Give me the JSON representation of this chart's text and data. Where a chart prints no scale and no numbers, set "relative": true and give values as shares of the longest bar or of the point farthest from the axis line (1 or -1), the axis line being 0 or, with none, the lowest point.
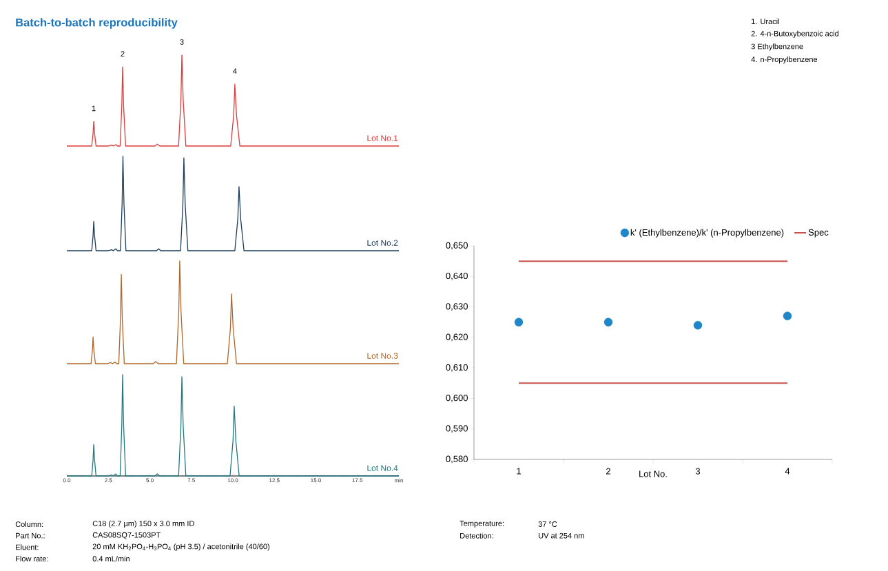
{
  "chart_data": [
    {
      "type": "line",
      "relative": true,
      "title": "Batch-to-batch reproducibility",
      "xlim": [
        0,
        20
      ],
      "tick_labels": false,
      "series": [
        {
          "name": "Lot No.1",
          "color": "#e03a3a",
          "x": [
            0,
            1.5,
            1.58,
            1.62,
            1.67,
            1.76,
            2.5,
            2.7,
            2.8,
            2.95,
            3.05,
            3.21,
            3.31,
            3.36,
            3.42,
            3.54,
            5.3,
            5.45,
            5.6,
            6.73,
            6.87,
            6.93,
            7.01,
            7.17,
            9.87,
            10.05,
            10.12,
            10.22,
            10.42,
            20
          ],
          "values": [
            0,
            0,
            0.14,
            0.27,
            0.14,
            0,
            0,
            0.01,
            0,
            0.015,
            0,
            0,
            0.44,
            0.87,
            0.44,
            0,
            0,
            0.02,
            0,
            0,
            0.5,
            1,
            0.5,
            0,
            0,
            0.34,
            0.68,
            0.34,
            0,
            0
          ]
        }
      ],
      "annotations": [
        {
          "text": "1",
          "x": 1.62,
          "y": 0.27
        },
        {
          "text": "2",
          "x": 3.36,
          "y": 0.87
        },
        {
          "text": "3",
          "x": 6.93,
          "y": 1
        },
        {
          "text": "4",
          "x": 10.12,
          "y": 0.68
        },
        "1. Uracil",
        "2. 4-n-Butoxybenzoic acid",
        "3  Ethylbenzene",
        "4. n-Propylbenzene",
        "Column:",
        "C18 (2.7 µm) 150 x 3.0 mm ID",
        "Part No.:",
        "CAS08SQ7-1503PT",
        "Eluent:",
        "20 mM KH$_{2}$PO$_{4}$-H$_{3}$PO$_{4}$ (pH 3.5) / acetonitrile (40/60)",
        "Flow rate:",
        "0.4 mL/min",
        "Temperature:",
        "37 °C",
        "Detection:",
        "UV at 254 nm"
      ]
    },
    {
      "type": "line",
      "relative": true,
      "xlim": [
        0,
        20
      ],
      "tick_labels": false,
      "series": [
        {
          "name": "Lot No.2",
          "color": "#1d3c5c",
          "x": [
            0,
            1.5,
            1.58,
            1.62,
            1.67,
            1.76,
            2.5,
            2.7,
            2.8,
            2.95,
            3.05,
            3.23,
            3.33,
            3.38,
            3.44,
            3.56,
            5.4,
            5.53,
            5.65,
            6.85,
            6.99,
            7.05,
            7.13,
            7.29,
            10.12,
            10.3,
            10.37,
            10.47,
            10.67,
            20
          ],
          "values": [
            0,
            0,
            0.16,
            0.31,
            0.16,
            0,
            0,
            0.01,
            0,
            0.02,
            0,
            0,
            0.5,
            1,
            0.5,
            0,
            0,
            0.02,
            0,
            0,
            0.49,
            0.985,
            0.49,
            0,
            0,
            0.34,
            0.68,
            0.34,
            0,
            0
          ]
        }
      ]
    },
    {
      "type": "line",
      "relative": true,
      "xlim": [
        0,
        20
      ],
      "tick_labels": false,
      "series": [
        {
          "name": "Lot No.3",
          "color": "#b0662a",
          "x": [
            0,
            1.46,
            1.54,
            1.58,
            1.63,
            1.72,
            2.45,
            2.65,
            2.75,
            2.9,
            3.0,
            3.13,
            3.23,
            3.28,
            3.34,
            3.46,
            5.2,
            5.35,
            5.5,
            6.6,
            6.74,
            6.8,
            6.88,
            7.04,
            9.67,
            9.85,
            9.92,
            10.02,
            10.22,
            20
          ],
          "values": [
            0,
            0,
            0.13,
            0.26,
            0.13,
            0,
            0,
            0.01,
            0,
            0.015,
            0,
            0,
            0.44,
            0.87,
            0.44,
            0,
            0,
            0.02,
            0,
            0,
            0.5,
            1,
            0.5,
            0,
            0,
            0.34,
            0.68,
            0.34,
            0,
            0
          ]
        }
      ]
    },
    {
      "type": "line",
      "relative": true,
      "xlim": [
        0,
        20
      ],
      "tick_labels": "x",
      "xticks": [
        {
          "value": 0,
          "label": "0.0"
        },
        {
          "value": 2.5,
          "label": "2.5"
        },
        {
          "value": 5,
          "label": "5.0"
        },
        {
          "value": 7.5,
          "label": "7.5"
        },
        {
          "value": 10,
          "label": "10.0"
        },
        {
          "value": 12.5,
          "label": "12.5"
        },
        {
          "value": 15,
          "label": "15.0"
        },
        {
          "value": 17.5,
          "label": "17.5"
        },
        {
          "value": 20,
          "label": "min"
        }
      ],
      "series": [
        {
          "name": "Lot No.4",
          "color": "#1f7a80",
          "x": [
            0,
            1.5,
            1.58,
            1.62,
            1.67,
            1.76,
            2.5,
            2.7,
            2.8,
            2.95,
            3.05,
            3.21,
            3.31,
            3.36,
            3.42,
            3.54,
            5.3,
            5.45,
            5.6,
            6.73,
            6.87,
            6.93,
            7.01,
            7.17,
            9.83,
            10.01,
            10.08,
            10.18,
            10.38,
            20
          ],
          "values": [
            0,
            0,
            0.16,
            0.31,
            0.16,
            0,
            0,
            0.01,
            0,
            0.02,
            0,
            0,
            0.5,
            1,
            0.5,
            0,
            0,
            0.02,
            0,
            0,
            0.49,
            0.98,
            0.49,
            0,
            0,
            0.35,
            0.69,
            0.35,
            0,
            0
          ]
        }
      ]
    },
    {
      "type": "scatter",
      "categories": [
        "1",
        "2",
        "3",
        "4"
      ],
      "xlabel": "Lot No.",
      "legend": "top",
      "ylim": [
        0.58,
        0.65
      ],
      "yticks": [
        {
          "value": 0.58,
          "label": "0,580"
        },
        {
          "value": 0.59,
          "label": "0,590"
        },
        {
          "value": 0.6,
          "label": "0,600"
        },
        {
          "value": 0.61,
          "label": "0,610"
        },
        {
          "value": 0.62,
          "label": "0,620"
        },
        {
          "value": 0.63,
          "label": "0,630"
        },
        {
          "value": 0.64,
          "label": "0,640"
        },
        {
          "value": 0.65,
          "label": "0,650"
        }
      ],
      "series": [
        {
          "name": "k' (Ethylbenzene)/k' (n-Propylbenzene)",
          "color": "#1f86c8",
          "values": [
            0.625,
            0.625,
            0.624,
            0.627
          ]
        },
        {
          "type": "line",
          "name": "Spec",
          "color": "#c8504a",
          "values": [
            0.645,
            0.645,
            0.645,
            0.645
          ]
        },
        {
          "type": "line",
          "color": "#c8504a",
          "values": [
            0.605,
            0.605,
            0.605,
            0.605
          ]
        }
      ]
    }
  ]
}
